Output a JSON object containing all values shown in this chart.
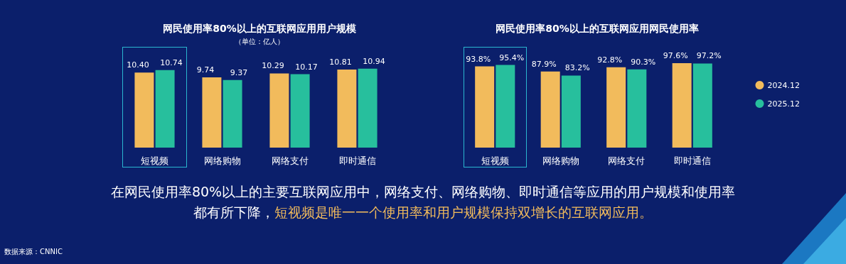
{
  "chart_data": [
    {
      "type": "bar",
      "title": "网民使用率80%以上的互联网应用用户规模",
      "subtitle": "（单位：亿人）",
      "categories": [
        "短视频",
        "网络购物",
        "网络支付",
        "即时通信"
      ],
      "series": [
        {
          "color": "#f2bb5c",
          "values": [
            10.4,
            9.74,
            10.29,
            10.81
          ],
          "value_labels": [
            "10.40",
            "9.74",
            "10.29",
            "10.81"
          ]
        },
        {
          "color": "#27bf9d",
          "values": [
            10.74,
            9.37,
            10.17,
            10.94
          ],
          "value_labels": [
            "10.74",
            "9.37",
            "10.17",
            "10.94"
          ]
        }
      ],
      "legend": false,
      "annotations": [
        "在网民使用率80%以上的主要互联网应用中，网络支付、网络购物、即时通信等应用的用户规模和使用率都有所下降，",
        "短视频是唯一一个使用率和用户规模保持双增长的互联网应用。",
        "数据来源：CNNIC"
      ]
    },
    {
      "type": "bar",
      "title": "网民使用率80%以上的互联网应用网民使用率",
      "categories": [
        "短视频",
        "网络购物",
        "网络支付",
        "即时通信"
      ],
      "series": [
        {
          "name": "2024.12",
          "color": "#f2bb5c",
          "values": [
            93.8,
            87.9,
            92.8,
            97.6
          ],
          "value_labels": [
            "93.8%",
            "87.9%",
            "92.8%",
            "97.6%"
          ]
        },
        {
          "name": "2025.12",
          "color": "#27bf9d",
          "values": [
            95.4,
            83.2,
            90.3,
            97.2
          ],
          "value_labels": [
            "95.4%",
            "83.2%",
            "90.3%",
            "97.2%"
          ]
        }
      ],
      "legend": "right"
    }
  ]
}
